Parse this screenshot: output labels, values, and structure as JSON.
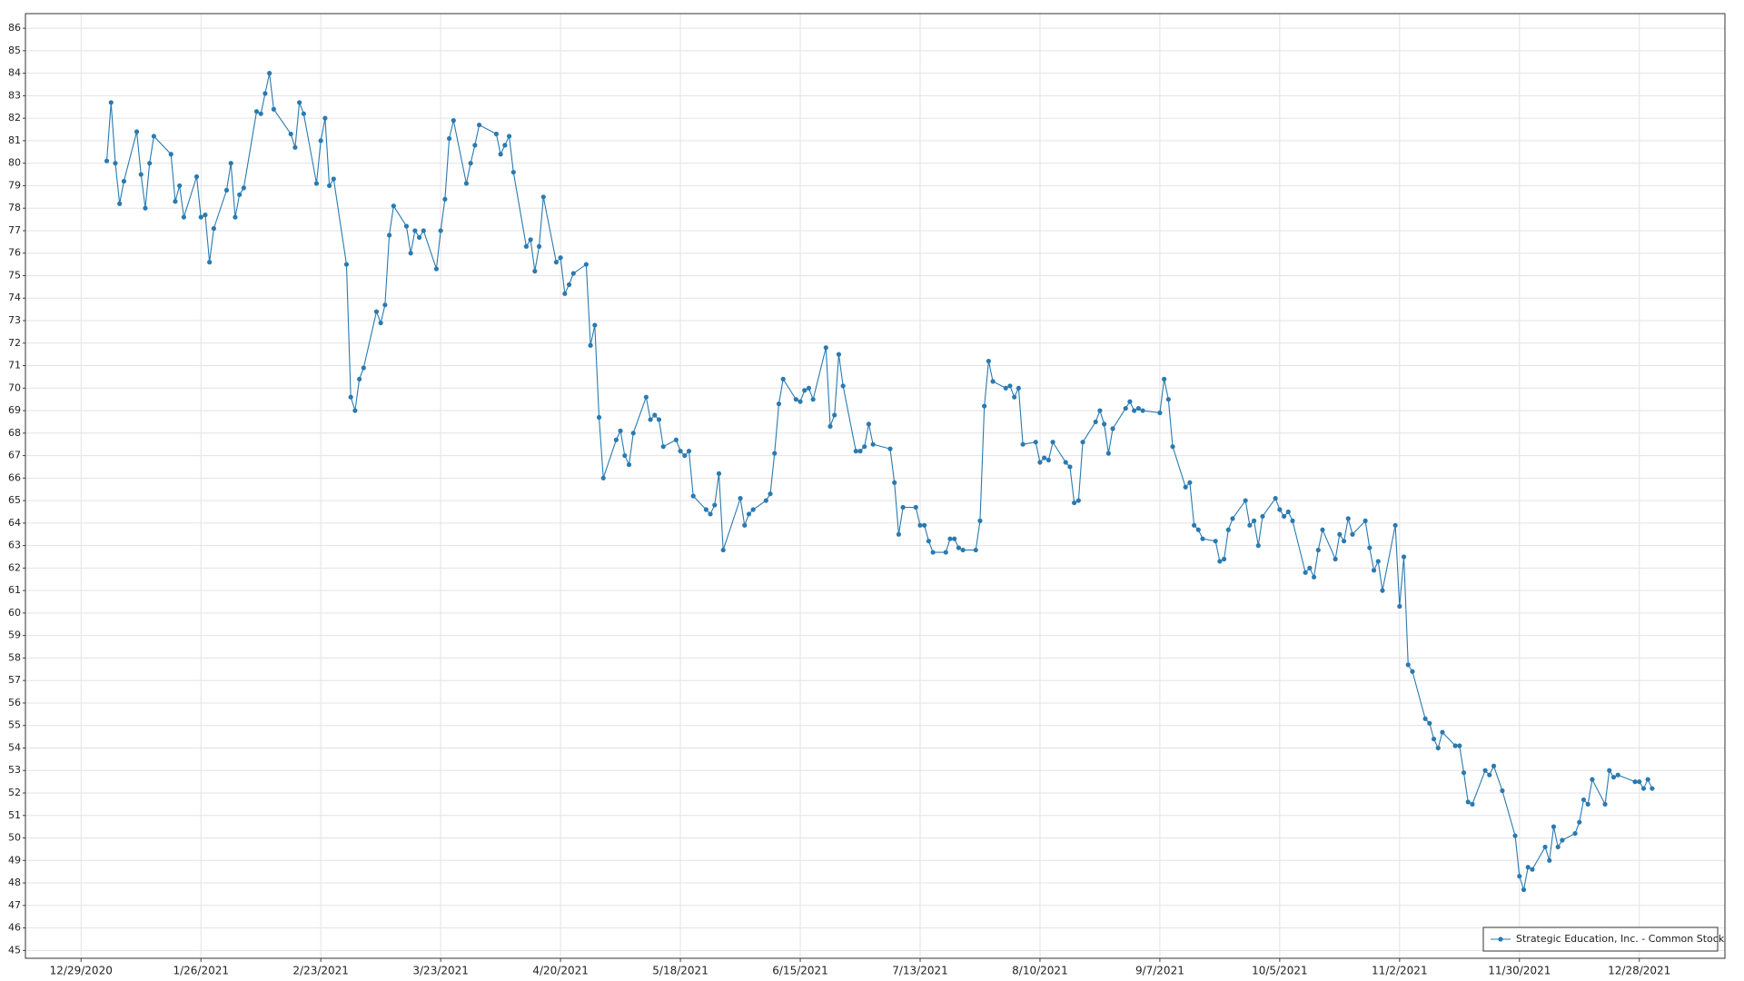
{
  "chart_data": {
    "type": "line",
    "x": [
      "1/4/2021",
      "1/5/2021",
      "1/6/2021",
      "1/7/2021",
      "1/8/2021",
      "1/11/2021",
      "1/12/2021",
      "1/13/2021",
      "1/14/2021",
      "1/15/2021",
      "1/19/2021",
      "1/20/2021",
      "1/21/2021",
      "1/22/2021",
      "1/25/2021",
      "1/26/2021",
      "1/27/2021",
      "1/28/2021",
      "1/29/2021",
      "2/1/2021",
      "2/2/2021",
      "2/3/2021",
      "2/4/2021",
      "2/5/2021",
      "2/8/2021",
      "2/9/2021",
      "2/10/2021",
      "2/11/2021",
      "2/12/2021",
      "2/16/2021",
      "2/17/2021",
      "2/18/2021",
      "2/19/2021",
      "2/22/2021",
      "2/23/2021",
      "2/24/2021",
      "2/25/2021",
      "2/26/2021",
      "3/1/2021",
      "3/2/2021",
      "3/3/2021",
      "3/4/2021",
      "3/5/2021",
      "3/8/2021",
      "3/9/2021",
      "3/10/2021",
      "3/11/2021",
      "3/12/2021",
      "3/15/2021",
      "3/16/2021",
      "3/17/2021",
      "3/18/2021",
      "3/19/2021",
      "3/22/2021",
      "3/23/2021",
      "3/24/2021",
      "3/25/2021",
      "3/26/2021",
      "3/29/2021",
      "3/30/2021",
      "3/31/2021",
      "4/1/2021",
      "4/5/2021",
      "4/6/2021",
      "4/7/2021",
      "4/8/2021",
      "4/9/2021",
      "4/12/2021",
      "4/13/2021",
      "4/14/2021",
      "4/15/2021",
      "4/16/2021",
      "4/19/2021",
      "4/20/2021",
      "4/21/2021",
      "4/22/2021",
      "4/23/2021",
      "4/26/2021",
      "4/27/2021",
      "4/28/2021",
      "4/29/2021",
      "4/30/2021",
      "5/3/2021",
      "5/4/2021",
      "5/5/2021",
      "5/6/2021",
      "5/7/2021",
      "5/10/2021",
      "5/11/2021",
      "5/12/2021",
      "5/13/2021",
      "5/14/2021",
      "5/17/2021",
      "5/18/2021",
      "5/19/2021",
      "5/20/2021",
      "5/21/2021",
      "5/24/2021",
      "5/25/2021",
      "5/26/2021",
      "5/27/2021",
      "5/28/2021",
      "6/1/2021",
      "6/2/2021",
      "6/3/2021",
      "6/4/2021",
      "6/7/2021",
      "6/8/2021",
      "6/9/2021",
      "6/10/2021",
      "6/11/2021",
      "6/14/2021",
      "6/15/2021",
      "6/16/2021",
      "6/17/2021",
      "6/18/2021",
      "6/21/2021",
      "6/22/2021",
      "6/23/2021",
      "6/24/2021",
      "6/25/2021",
      "6/28/2021",
      "6/29/2021",
      "6/30/2021",
      "7/1/2021",
      "7/2/2021",
      "7/6/2021",
      "7/7/2021",
      "7/8/2021",
      "7/9/2021",
      "7/12/2021",
      "7/13/2021",
      "7/14/2021",
      "7/15/2021",
      "7/16/2021",
      "7/19/2021",
      "7/20/2021",
      "7/21/2021",
      "7/22/2021",
      "7/23/2021",
      "7/26/2021",
      "7/27/2021",
      "7/28/2021",
      "7/29/2021",
      "7/30/2021",
      "8/2/2021",
      "8/3/2021",
      "8/4/2021",
      "8/5/2021",
      "8/6/2021",
      "8/9/2021",
      "8/10/2021",
      "8/11/2021",
      "8/12/2021",
      "8/13/2021",
      "8/16/2021",
      "8/17/2021",
      "8/18/2021",
      "8/19/2021",
      "8/20/2021",
      "8/23/2021",
      "8/24/2021",
      "8/25/2021",
      "8/26/2021",
      "8/27/2021",
      "8/30/2021",
      "8/31/2021",
      "9/1/2021",
      "9/2/2021",
      "9/3/2021",
      "9/7/2021",
      "9/8/2021",
      "9/9/2021",
      "9/10/2021",
      "9/13/2021",
      "9/14/2021",
      "9/15/2021",
      "9/16/2021",
      "9/17/2021",
      "9/20/2021",
      "9/21/2021",
      "9/22/2021",
      "9/23/2021",
      "9/24/2021",
      "9/27/2021",
      "9/28/2021",
      "9/29/2021",
      "9/30/2021",
      "10/1/2021",
      "10/4/2021",
      "10/5/2021",
      "10/6/2021",
      "10/7/2021",
      "10/8/2021",
      "10/11/2021",
      "10/12/2021",
      "10/13/2021",
      "10/14/2021",
      "10/15/2021",
      "10/18/2021",
      "10/19/2021",
      "10/20/2021",
      "10/21/2021",
      "10/22/2021",
      "10/25/2021",
      "10/26/2021",
      "10/27/2021",
      "10/28/2021",
      "10/29/2021",
      "11/1/2021",
      "11/2/2021",
      "11/3/2021",
      "11/4/2021",
      "11/5/2021",
      "11/8/2021",
      "11/9/2021",
      "11/10/2021",
      "11/11/2021",
      "11/12/2021",
      "11/15/2021",
      "11/16/2021",
      "11/17/2021",
      "11/18/2021",
      "11/19/2021",
      "11/22/2021",
      "11/23/2021",
      "11/24/2021",
      "11/26/2021",
      "11/29/2021",
      "11/30/2021",
      "12/1/2021",
      "12/2/2021",
      "12/3/2021",
      "12/6/2021",
      "12/7/2021",
      "12/8/2021",
      "12/9/2021",
      "12/10/2021",
      "12/13/2021",
      "12/14/2021",
      "12/15/2021",
      "12/16/2021",
      "12/17/2021",
      "12/20/2021",
      "12/21/2021",
      "12/22/2021",
      "12/23/2021",
      "12/27/2021",
      "12/28/2021",
      "12/29/2021",
      "12/30/2021",
      "12/31/2021"
    ],
    "series": [
      {
        "name": "Strategic Education, Inc. - Common Stock",
        "color": "#2a7ab0",
        "values": [
          80.1,
          82.7,
          80.0,
          78.2,
          79.2,
          81.4,
          79.5,
          78.0,
          80.0,
          81.2,
          80.4,
          78.3,
          79.0,
          77.6,
          79.4,
          77.6,
          77.7,
          75.6,
          77.1,
          78.8,
          80.0,
          77.6,
          78.6,
          78.9,
          82.3,
          82.2,
          83.1,
          84.0,
          82.4,
          81.3,
          80.7,
          82.7,
          82.2,
          79.1,
          81.0,
          82.0,
          79.0,
          79.3,
          75.5,
          69.6,
          69.0,
          70.4,
          70.9,
          73.4,
          72.9,
          73.7,
          76.8,
          78.1,
          77.2,
          76.0,
          77.0,
          76.7,
          77.0,
          75.3,
          77.0,
          78.4,
          81.1,
          81.9,
          79.1,
          80.0,
          80.8,
          81.7,
          81.3,
          80.4,
          80.8,
          81.2,
          79.6,
          76.3,
          76.6,
          75.2,
          76.3,
          78.5,
          75.6,
          75.8,
          74.2,
          74.6,
          75.1,
          75.5,
          71.9,
          72.8,
          68.7,
          66.0,
          67.7,
          68.1,
          67.0,
          66.6,
          68.0,
          69.6,
          68.6,
          68.8,
          68.6,
          67.4,
          67.7,
          67.2,
          67.0,
          67.2,
          65.2,
          64.6,
          64.4,
          64.8,
          66.2,
          62.8,
          65.1,
          63.9,
          64.4,
          64.6,
          65.0,
          65.3,
          67.1,
          69.3,
          70.4,
          69.5,
          69.4,
          69.9,
          70.0,
          69.5,
          71.8,
          68.3,
          68.8,
          71.5,
          70.1,
          67.2,
          67.2,
          67.4,
          68.4,
          67.5,
          67.3,
          65.8,
          63.5,
          64.7,
          64.7,
          63.9,
          63.9,
          63.2,
          62.7,
          62.7,
          63.3,
          63.3,
          62.9,
          62.8,
          62.8,
          64.1,
          69.2,
          71.2,
          70.3,
          70.0,
          70.1,
          69.6,
          70.0,
          67.5,
          67.6,
          66.7,
          66.9,
          66.8,
          67.6,
          66.7,
          66.5,
          64.9,
          65.0,
          67.6,
          68.5,
          69.0,
          68.4,
          67.1,
          68.2,
          69.1,
          69.4,
          69.0,
          69.1,
          69.0,
          68.9,
          70.4,
          69.5,
          67.4,
          65.6,
          65.8,
          63.9,
          63.7,
          63.3,
          63.2,
          62.3,
          62.4,
          63.7,
          64.2,
          65.0,
          63.9,
          64.1,
          63.0,
          64.3,
          65.1,
          64.6,
          64.3,
          64.5,
          64.1,
          61.8,
          62.0,
          61.6,
          62.8,
          63.7,
          62.4,
          63.5,
          63.2,
          64.2,
          63.5,
          64.1,
          62.9,
          61.9,
          62.3,
          61.0,
          63.9,
          60.3,
          62.5,
          57.7,
          57.4,
          55.3,
          55.1,
          54.4,
          54.0,
          54.7,
          54.1,
          54.1,
          52.9,
          51.6,
          51.5,
          53.0,
          52.8,
          53.2,
          52.1,
          50.1,
          48.3,
          47.7,
          48.7,
          48.6,
          49.6,
          49.0,
          50.5,
          49.6,
          49.9,
          50.2,
          50.7,
          51.7,
          51.5,
          52.6,
          51.5,
          53.0,
          52.7,
          52.8,
          52.5,
          52.5,
          52.2,
          52.6,
          52.2
        ]
      }
    ],
    "xlim": [
      "12/16/2020",
      "1/17/2022"
    ],
    "xticks": [
      "12/29/2020",
      "1/26/2021",
      "2/23/2021",
      "3/23/2021",
      "4/20/2021",
      "5/18/2021",
      "6/15/2021",
      "7/13/2021",
      "8/10/2021",
      "9/7/2021",
      "10/5/2021",
      "11/2/2021",
      "11/30/2021",
      "12/28/2021"
    ],
    "ylim": [
      44.65,
      86.65
    ],
    "yticks": [
      45,
      46,
      47,
      48,
      49,
      50,
      51,
      52,
      53,
      54,
      55,
      56,
      57,
      58,
      59,
      60,
      61,
      62,
      63,
      64,
      65,
      66,
      67,
      68,
      69,
      70,
      71,
      72,
      73,
      74,
      75,
      76,
      77,
      78,
      79,
      80,
      81,
      82,
      83,
      84,
      85,
      86
    ],
    "grid": true,
    "markers": true,
    "legend": "lower right"
  }
}
